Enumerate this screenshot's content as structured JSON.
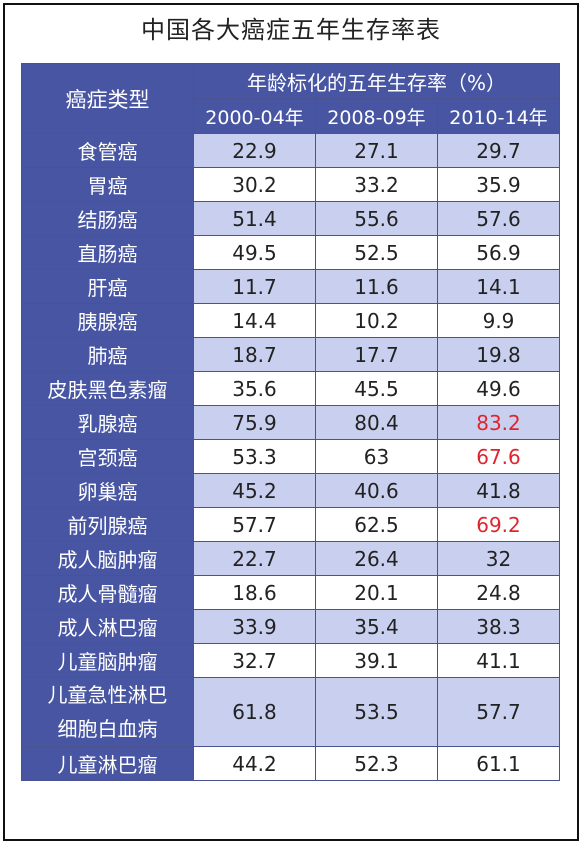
{
  "title": "中国各大癌症五年生存率表",
  "header": {
    "type_label": "癌症类型",
    "group_label": "年龄标化的五年生存率（%）",
    "years": [
      "2000-04年",
      "2008-09年",
      "2010-14年"
    ]
  },
  "highlight_color": "#e0242e",
  "rows": [
    {
      "name": "食管癌",
      "values": [
        "22.9",
        "27.1",
        "29.7"
      ]
    },
    {
      "name": "胃癌",
      "values": [
        "30.2",
        "33.2",
        "35.9"
      ]
    },
    {
      "name": "结肠癌",
      "values": [
        "51.4",
        "55.6",
        "57.6"
      ]
    },
    {
      "name": "直肠癌",
      "values": [
        "49.5",
        "52.5",
        "56.9"
      ]
    },
    {
      "name": "肝癌",
      "values": [
        "11.7",
        "11.6",
        "14.1"
      ]
    },
    {
      "name": "胰腺癌",
      "values": [
        "14.4",
        "10.2",
        "9.9"
      ]
    },
    {
      "name": "肺癌",
      "values": [
        "18.7",
        "17.7",
        "19.8"
      ]
    },
    {
      "name": "皮肤黑色素瘤",
      "values": [
        "35.6",
        "45.5",
        "49.6"
      ]
    },
    {
      "name": "乳腺癌",
      "values": [
        "75.9",
        "80.4",
        "83.2"
      ],
      "highlight": [
        2
      ]
    },
    {
      "name": "宫颈癌",
      "values": [
        "53.3",
        "63",
        "67.6"
      ],
      "highlight": [
        2
      ]
    },
    {
      "name": "卵巢癌",
      "values": [
        "45.2",
        "40.6",
        "41.8"
      ]
    },
    {
      "name": "前列腺癌",
      "values": [
        "57.7",
        "62.5",
        "69.2"
      ],
      "highlight": [
        2
      ]
    },
    {
      "name": "成人脑肿瘤",
      "values": [
        "22.7",
        "26.4",
        "32"
      ]
    },
    {
      "name": "成人骨髓瘤",
      "values": [
        "18.6",
        "20.1",
        "24.8"
      ]
    },
    {
      "name": "成人淋巴瘤",
      "values": [
        "33.9",
        "35.4",
        "38.3"
      ]
    },
    {
      "name": "儿童脑肿瘤",
      "values": [
        "32.7",
        "39.1",
        "41.1"
      ]
    },
    {
      "name": "儿童急性淋巴细胞白血病",
      "name_lines": [
        "儿童急性淋巴",
        "细胞白血病"
      ],
      "values": [
        "61.8",
        "53.5",
        "57.7"
      ],
      "tall": true
    },
    {
      "name": "儿童淋巴瘤",
      "values": [
        "44.2",
        "52.3",
        "61.1"
      ]
    }
  ]
}
